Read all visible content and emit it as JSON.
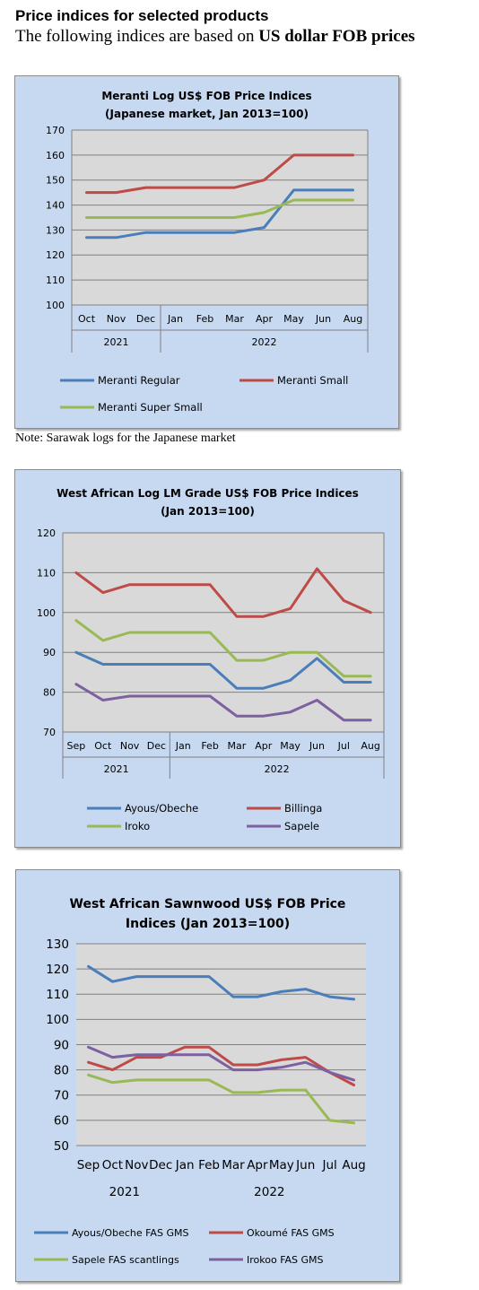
{
  "heading": "Price indices for selected products",
  "subheading_prefix": "The following indices are based on ",
  "subheading_bold": "US dollar FOB prices",
  "note": "Note: Sarawak logs for the Japanese market",
  "chart_data": [
    {
      "type": "line",
      "title_lines": [
        "Meranti Log US$ FOB Price Indices",
        "(Japanese market, Jan 2013=100)"
      ],
      "categories": [
        "Oct",
        "Nov",
        "Dec",
        "Jan",
        "Feb",
        "Mar",
        "Apr",
        "May",
        "Jun",
        "Aug"
      ],
      "year_groups": [
        {
          "label": "2021",
          "count": 3
        },
        {
          "label": "2022",
          "count": 7
        }
      ],
      "ylim": [
        100,
        170
      ],
      "yticks": [
        100,
        110,
        120,
        130,
        140,
        150,
        160,
        170
      ],
      "series": [
        {
          "name": "Meranti Regular",
          "color": "#4a7ebb",
          "values": [
            127,
            127,
            129,
            129,
            129,
            129,
            131,
            146,
            146,
            146
          ]
        },
        {
          "name": "Meranti Small",
          "color": "#be4b48",
          "values": [
            145,
            145,
            147,
            147,
            147,
            147,
            150,
            160,
            160,
            160
          ]
        },
        {
          "name": "Meranti Super Small",
          "color": "#98b954",
          "values": [
            135,
            135,
            135,
            135,
            135,
            135,
            137,
            142,
            142,
            142
          ]
        }
      ]
    },
    {
      "type": "line",
      "title_lines": [
        "West African Log LM Grade US$ FOB Price Indices",
        "(Jan 2013=100)"
      ],
      "categories": [
        "Sep",
        "Oct",
        "Nov",
        "Dec",
        "Jan",
        "Feb",
        "Mar",
        "Apr",
        "May",
        "Jun",
        "Jul",
        "Aug"
      ],
      "year_groups": [
        {
          "label": "2021",
          "count": 4
        },
        {
          "label": "2022",
          "count": 8
        }
      ],
      "ylim": [
        70,
        120
      ],
      "yticks": [
        70,
        80,
        90,
        100,
        110,
        120
      ],
      "series": [
        {
          "name": "Ayous/Obeche",
          "color": "#4a7ebb",
          "values": [
            90,
            87,
            87,
            87,
            87,
            87,
            81,
            81,
            83,
            88.5,
            82.5,
            82.5
          ]
        },
        {
          "name": "Billinga",
          "color": "#be4b48",
          "values": [
            110,
            105,
            107,
            107,
            107,
            107,
            99,
            99,
            101,
            111,
            103,
            100
          ]
        },
        {
          "name": "Iroko",
          "color": "#98b954",
          "values": [
            98,
            93,
            95,
            95,
            95,
            95,
            88,
            88,
            90,
            90,
            84,
            84
          ]
        },
        {
          "name": "Sapele",
          "color": "#7d60a0",
          "values": [
            82,
            78,
            79,
            79,
            79,
            79,
            74,
            74,
            75,
            78,
            73,
            73
          ]
        }
      ]
    },
    {
      "type": "line",
      "title_lines": [
        "West African Sawnwood US$ FOB Price",
        "Indices (Jan 2013=100)"
      ],
      "categories": [
        "Sep",
        "Oct",
        "Nov",
        "Dec",
        "Jan",
        "Feb",
        "Mar",
        "Apr",
        "May",
        "Jun",
        "Jul",
        "Aug"
      ],
      "year_groups": [
        {
          "label": "2021",
          "count": 4
        },
        {
          "label": "2022",
          "count": 8
        }
      ],
      "ylim": [
        50,
        130
      ],
      "yticks": [
        50,
        60,
        70,
        80,
        90,
        100,
        110,
        120,
        130
      ],
      "series": [
        {
          "name": "Ayous/Obeche  FAS GMS",
          "color": "#4a7ebb",
          "values": [
            121,
            115,
            117,
            117,
            117,
            117,
            109,
            109,
            111,
            112,
            109,
            108
          ]
        },
        {
          "name": "Okoumé  FAS GMS",
          "color": "#be4b48",
          "values": [
            83,
            80,
            85,
            85,
            89,
            89,
            82,
            82,
            84,
            85,
            79,
            74
          ]
        },
        {
          "name": "Sapele FAS scantlings",
          "color": "#98b954",
          "values": [
            78,
            75,
            76,
            76,
            76,
            76,
            71,
            71,
            72,
            72,
            60,
            59
          ]
        },
        {
          "name": "Irokoo FAS GMS",
          "color": "#7d60a0",
          "values": [
            89,
            85,
            86,
            86,
            86,
            86,
            80,
            80,
            81,
            83,
            79,
            76
          ]
        }
      ]
    }
  ]
}
